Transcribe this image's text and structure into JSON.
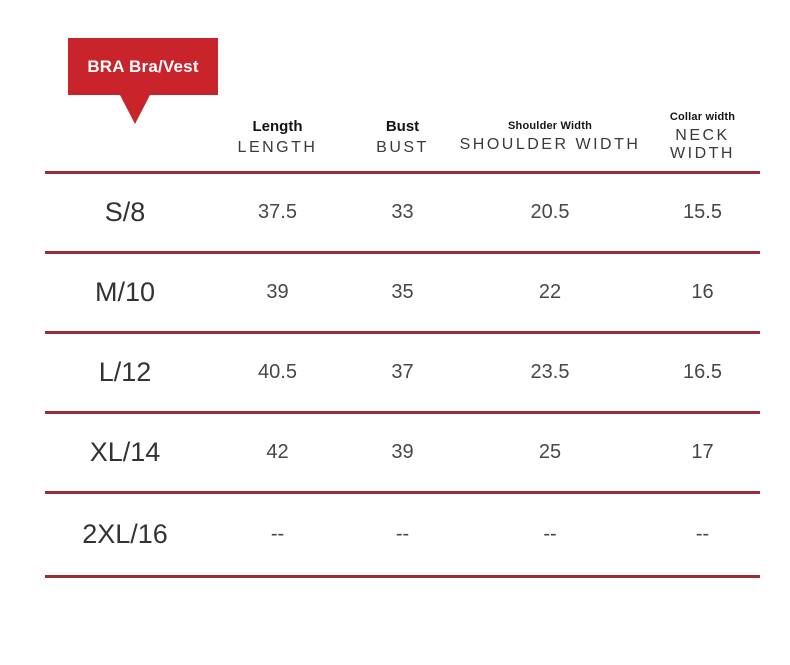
{
  "badge": {
    "label": "BRA Bra/Vest",
    "color": "#c9232b"
  },
  "table": {
    "divider_color": "#9b2d35",
    "columns": [
      {
        "label_top": "Length",
        "label_bottom": "LENGTH"
      },
      {
        "label_top": "Bust",
        "label_bottom": "BUST"
      },
      {
        "label_top": "Shoulder Width",
        "label_bottom": "SHOULDER WIDTH"
      },
      {
        "label_top": "Collar width",
        "label_bottom": "NECK WIDTH"
      }
    ],
    "rows": [
      {
        "size": "S/8",
        "values": [
          "37.5",
          "33",
          "20.5",
          "15.5"
        ]
      },
      {
        "size": "M/10",
        "values": [
          "39",
          "35",
          "22",
          "16"
        ]
      },
      {
        "size": "L/12",
        "values": [
          "40.5",
          "37",
          "23.5",
          "16.5"
        ]
      },
      {
        "size": "XL/14",
        "values": [
          "42",
          "39",
          "25",
          "17"
        ]
      },
      {
        "size": "2XL/16",
        "values": [
          "--",
          "--",
          "--",
          "--"
        ]
      }
    ]
  }
}
